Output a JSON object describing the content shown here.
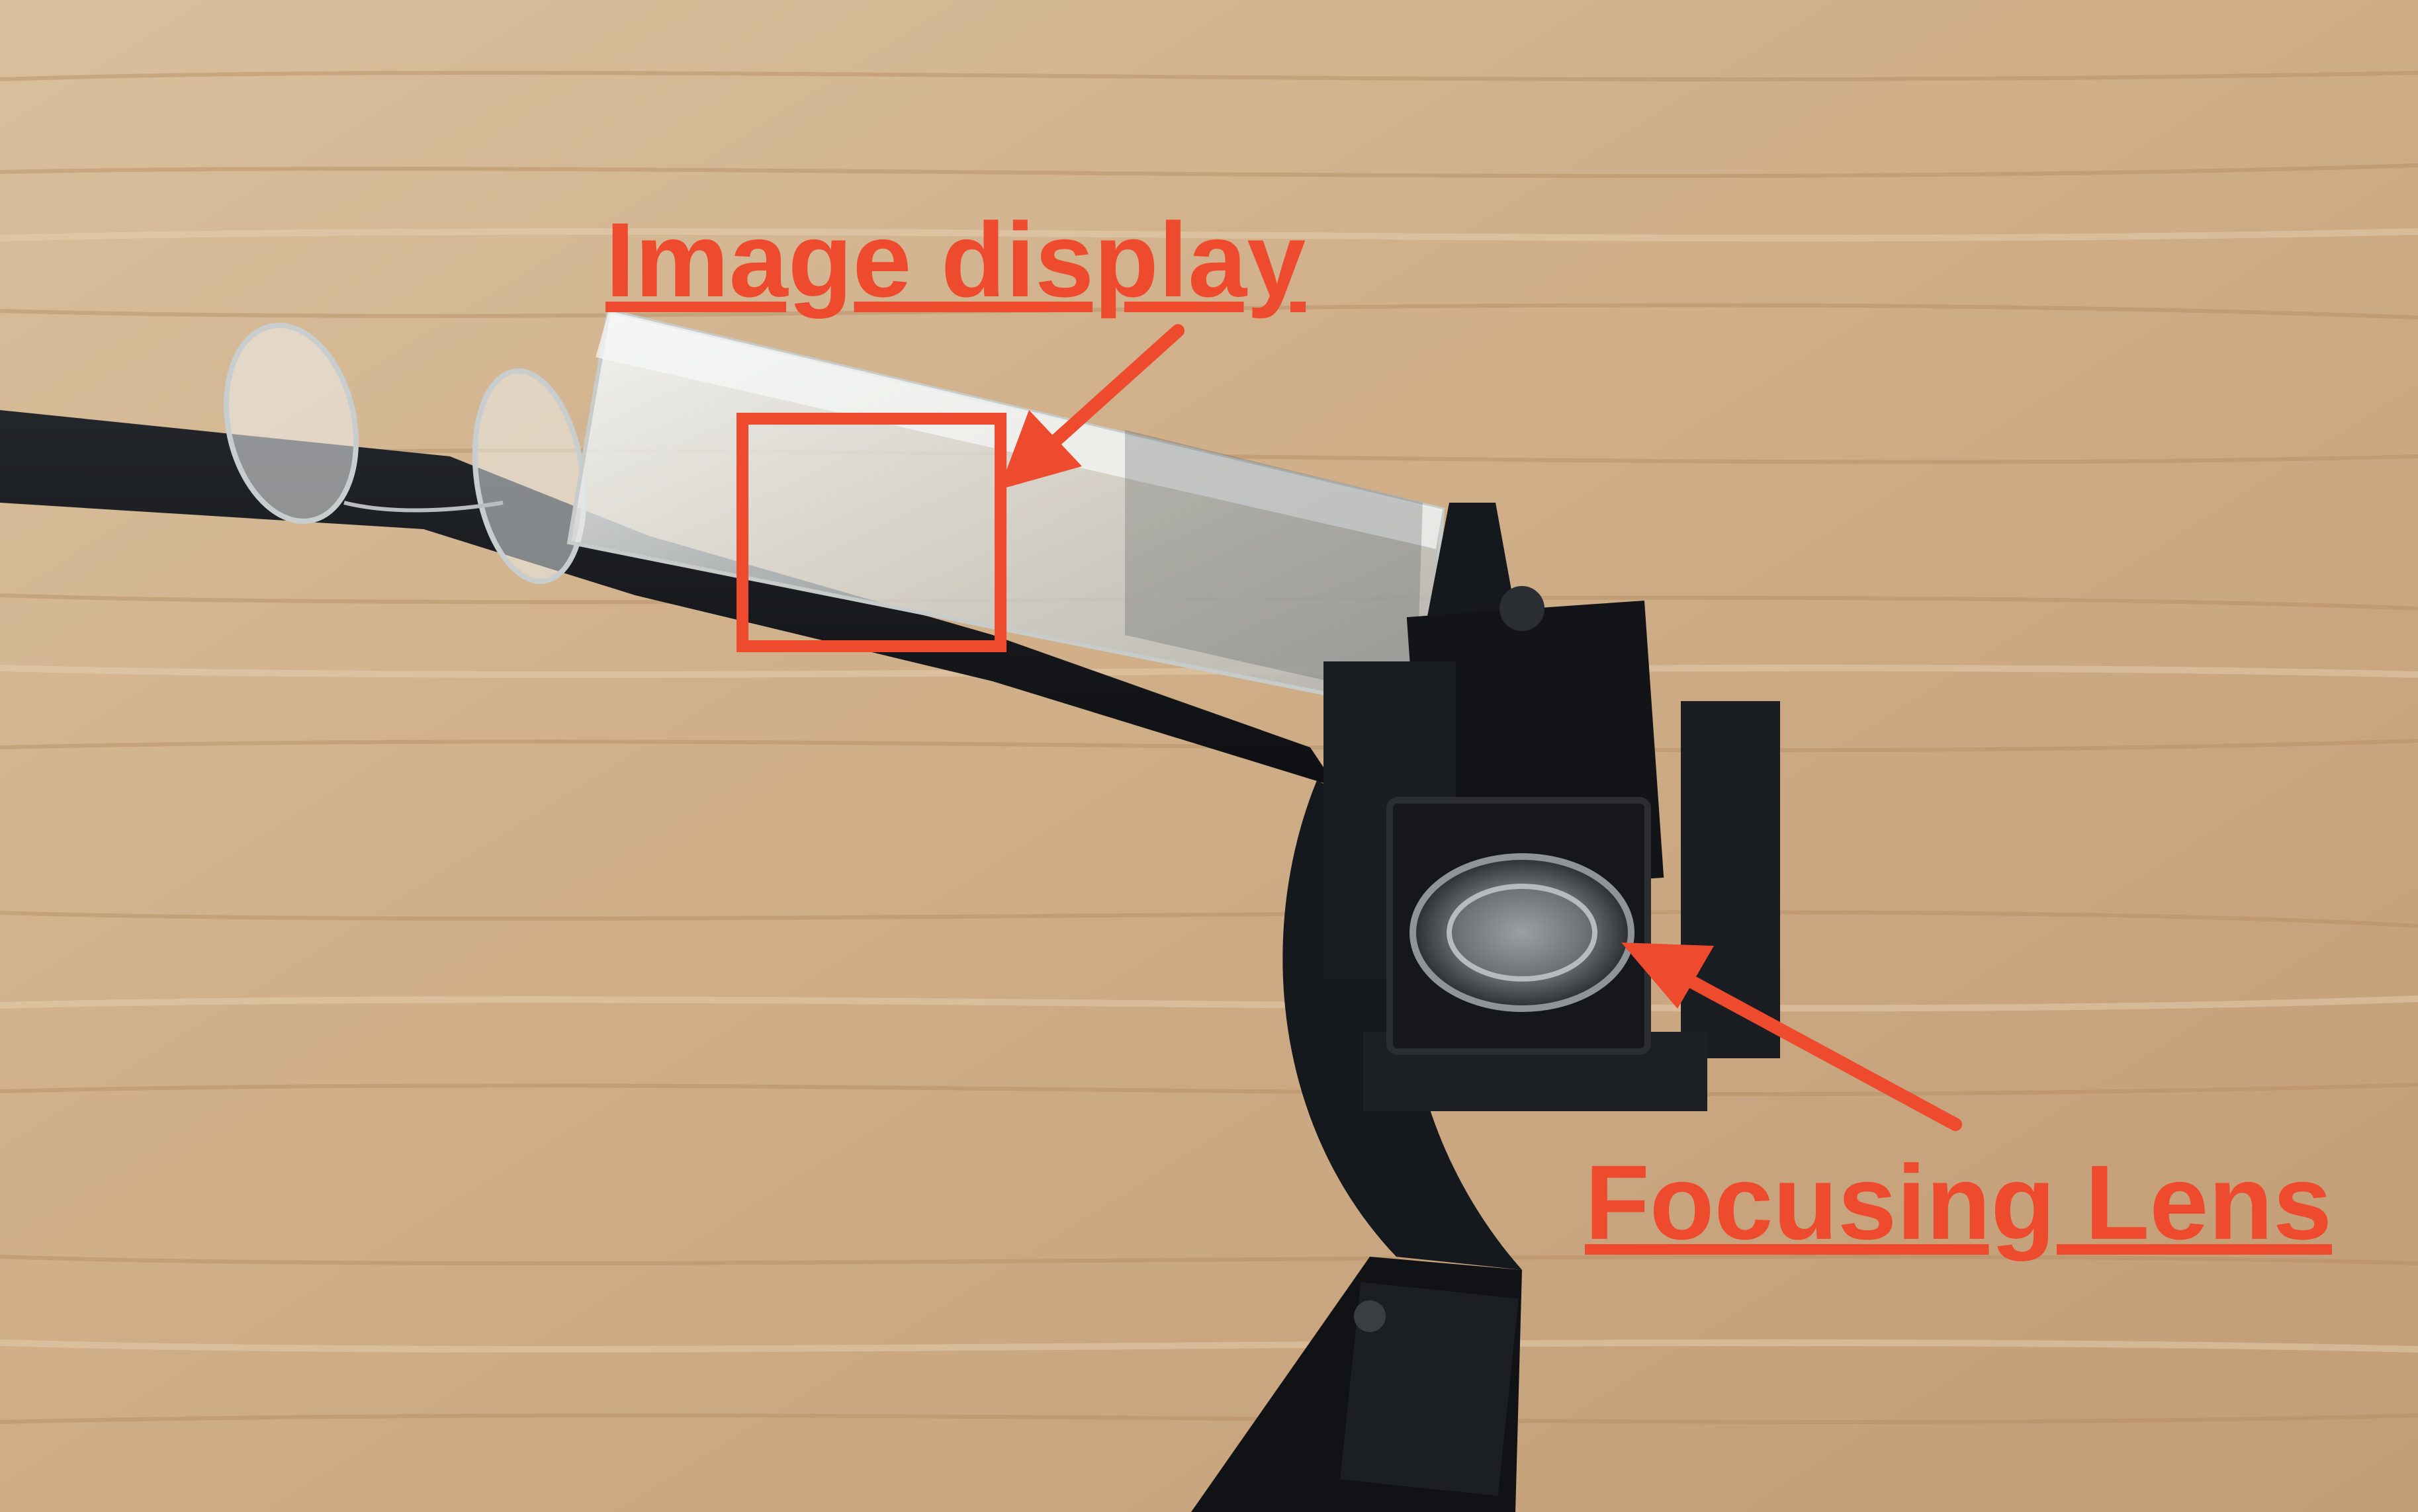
{
  "annotations": {
    "image_display_label": "Image display",
    "focusing_lens_label": "Focusing Lens"
  },
  "colors": {
    "annotation": "#ee4a2e",
    "wood_light": "#d7b994",
    "wood_dark": "#b58e64",
    "frame_black": "#141619",
    "prism_glass": "#e9ecec"
  }
}
